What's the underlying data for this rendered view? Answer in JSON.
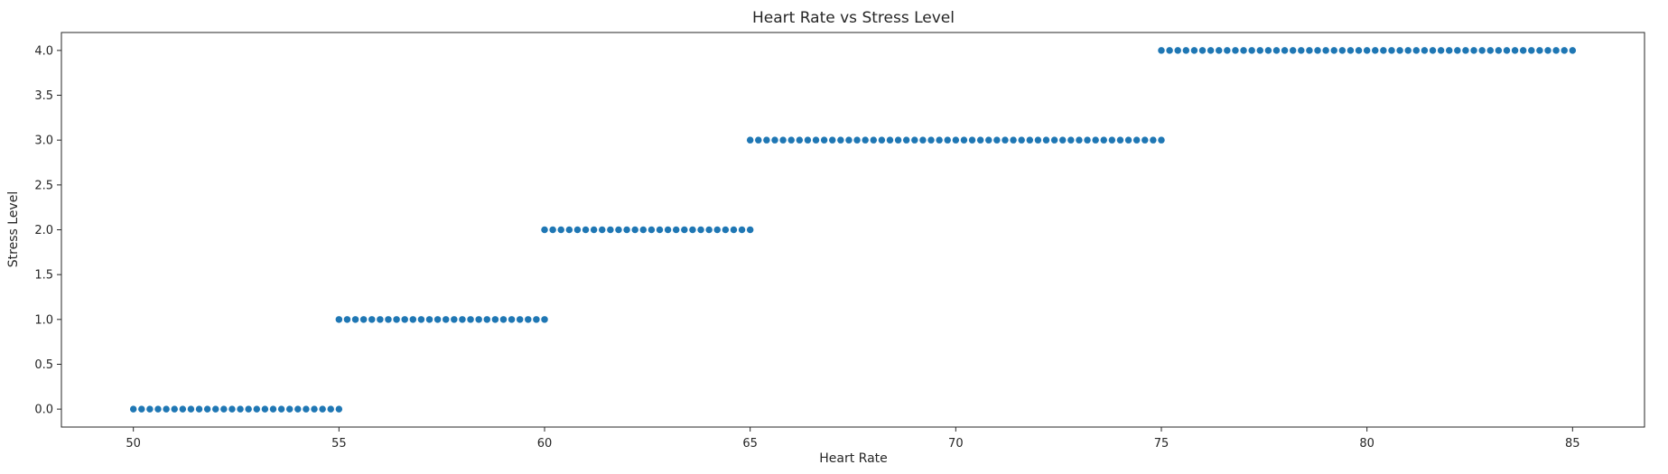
{
  "chart_data": {
    "type": "scatter",
    "title": "Heart Rate vs Stress Level",
    "xlabel": "Heart Rate",
    "ylabel": "Stress Level",
    "xlim": [
      48.25,
      86.75
    ],
    "ylim": [
      -0.2,
      4.2
    ],
    "xticks": [
      50,
      55,
      60,
      65,
      70,
      75,
      80,
      85
    ],
    "xtick_labels": [
      "50",
      "55",
      "60",
      "65",
      "70",
      "75",
      "80",
      "85"
    ],
    "yticks": [
      0.0,
      0.5,
      1.0,
      1.5,
      2.0,
      2.5,
      3.0,
      3.5,
      4.0
    ],
    "ytick_labels": [
      "0.0",
      "0.5",
      "1.0",
      "1.5",
      "2.0",
      "2.5",
      "3.0",
      "3.5",
      "4.0"
    ],
    "grid": false,
    "marker_color": "#1f77b4",
    "marker_edge_color": "#ffffff",
    "series": [
      {
        "x": [
          50.0,
          50.2,
          50.4,
          50.6,
          50.8,
          51.0,
          51.2,
          51.4,
          51.6,
          51.8,
          52.0,
          52.2,
          52.4,
          52.6,
          52.8,
          53.0,
          53.2,
          53.4,
          53.6,
          53.8,
          54.0,
          54.2,
          54.4,
          54.6,
          54.8,
          55.0
        ],
        "y": [
          0,
          0,
          0,
          0,
          0,
          0,
          0,
          0,
          0,
          0,
          0,
          0,
          0,
          0,
          0,
          0,
          0,
          0,
          0,
          0,
          0,
          0,
          0,
          0,
          0,
          0
        ]
      },
      {
        "x": [
          55.0,
          55.2,
          55.4,
          55.6,
          55.8,
          56.0,
          56.2,
          56.4,
          56.6,
          56.8,
          57.0,
          57.2,
          57.4,
          57.6,
          57.8,
          58.0,
          58.2,
          58.4,
          58.6,
          58.8,
          59.0,
          59.2,
          59.4,
          59.6,
          59.8,
          60.0
        ],
        "y": [
          1,
          1,
          1,
          1,
          1,
          1,
          1,
          1,
          1,
          1,
          1,
          1,
          1,
          1,
          1,
          1,
          1,
          1,
          1,
          1,
          1,
          1,
          1,
          1,
          1,
          1
        ]
      },
      {
        "x": [
          60.0,
          60.2,
          60.4,
          60.6,
          60.8,
          61.0,
          61.2,
          61.4,
          61.6,
          61.8,
          62.0,
          62.2,
          62.4,
          62.6,
          62.8,
          63.0,
          63.2,
          63.4,
          63.6,
          63.8,
          64.0,
          64.2,
          64.4,
          64.6,
          64.8,
          65.0
        ],
        "y": [
          2,
          2,
          2,
          2,
          2,
          2,
          2,
          2,
          2,
          2,
          2,
          2,
          2,
          2,
          2,
          2,
          2,
          2,
          2,
          2,
          2,
          2,
          2,
          2,
          2,
          2
        ]
      },
      {
        "x": [
          65.0,
          65.2,
          65.4,
          65.6,
          65.8,
          66.0,
          66.2,
          66.4,
          66.6,
          66.8,
          67.0,
          67.2,
          67.4,
          67.6,
          67.8,
          68.0,
          68.2,
          68.4,
          68.6,
          68.8,
          69.0,
          69.2,
          69.4,
          69.6,
          69.8,
          70.0,
          70.2,
          70.4,
          70.6,
          70.8,
          71.0,
          71.2,
          71.4,
          71.6,
          71.8,
          72.0,
          72.2,
          72.4,
          72.6,
          72.8,
          73.0,
          73.2,
          73.4,
          73.6,
          73.8,
          74.0,
          74.2,
          74.4,
          74.6,
          74.8,
          75.0
        ],
        "y": [
          3,
          3,
          3,
          3,
          3,
          3,
          3,
          3,
          3,
          3,
          3,
          3,
          3,
          3,
          3,
          3,
          3,
          3,
          3,
          3,
          3,
          3,
          3,
          3,
          3,
          3,
          3,
          3,
          3,
          3,
          3,
          3,
          3,
          3,
          3,
          3,
          3,
          3,
          3,
          3,
          3,
          3,
          3,
          3,
          3,
          3,
          3,
          3,
          3,
          3,
          3
        ]
      },
      {
        "x": [
          75.0,
          75.2,
          75.4,
          75.6,
          75.8,
          76.0,
          76.2,
          76.4,
          76.6,
          76.8,
          77.0,
          77.2,
          77.4,
          77.6,
          77.8,
          78.0,
          78.2,
          78.4,
          78.6,
          78.8,
          79.0,
          79.2,
          79.4,
          79.6,
          79.8,
          80.0,
          80.2,
          80.4,
          80.6,
          80.8,
          81.0,
          81.2,
          81.4,
          81.6,
          81.8,
          82.0,
          82.2,
          82.4,
          82.6,
          82.8,
          83.0,
          83.2,
          83.4,
          83.6,
          83.8,
          84.0,
          84.2,
          84.4,
          84.6,
          84.8,
          85.0
        ],
        "y": [
          4,
          4,
          4,
          4,
          4,
          4,
          4,
          4,
          4,
          4,
          4,
          4,
          4,
          4,
          4,
          4,
          4,
          4,
          4,
          4,
          4,
          4,
          4,
          4,
          4,
          4,
          4,
          4,
          4,
          4,
          4,
          4,
          4,
          4,
          4,
          4,
          4,
          4,
          4,
          4,
          4,
          4,
          4,
          4,
          4,
          4,
          4,
          4,
          4,
          4,
          4
        ]
      }
    ]
  }
}
